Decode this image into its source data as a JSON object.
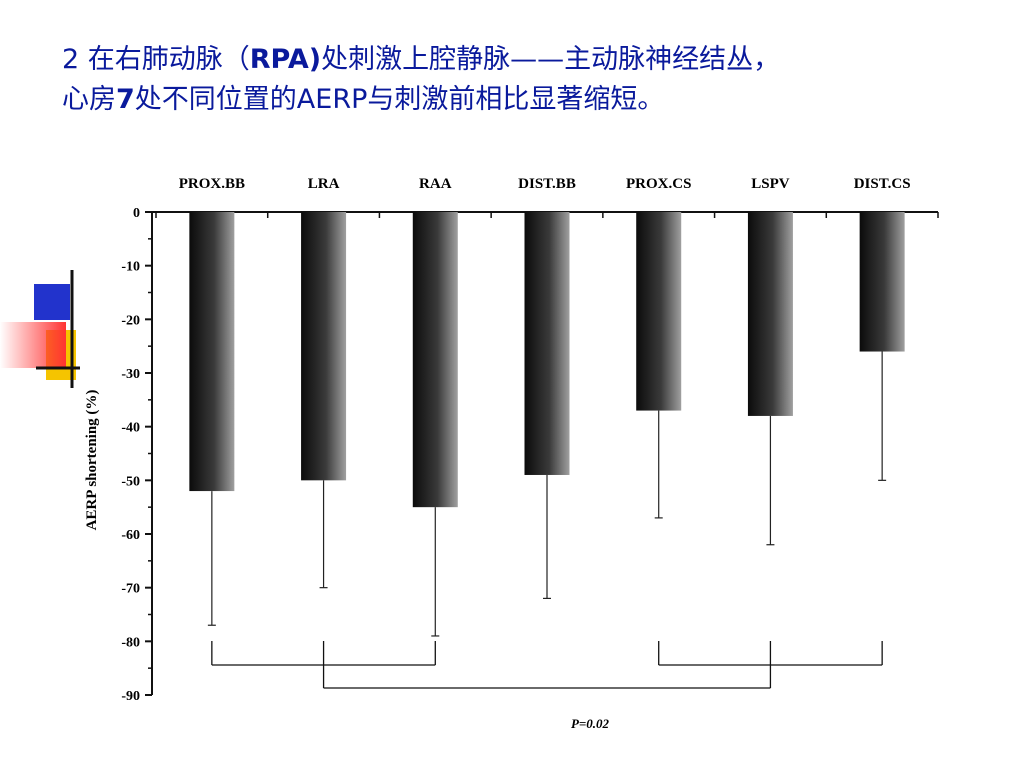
{
  "slide": {
    "title_line1_pre": "2  在右肺动脉（",
    "title_line1_bold": "RPA)",
    "title_line1_post": "处刺激上腔静脉——主动脉神经结丛，",
    "title_line2_pre": "心房",
    "title_line2_bold": "7",
    "title_line2_post": "处不同位置的AERP与刺激前相比显著缩短。"
  },
  "colors": {
    "title": "#0a1a9c",
    "bar_dark": "#111111",
    "bar_light": "#9a9a9a",
    "deco_blue": "#2233cc",
    "deco_yellow": "#f5c400",
    "deco_red": "#ff3333"
  },
  "chart_data": {
    "type": "bar",
    "categories": [
      "PROX.BB",
      "LRA",
      "RAA",
      "DIST.BB",
      "PROX.CS",
      "LSPV",
      "DIST.CS"
    ],
    "values": [
      -52,
      -50,
      -55,
      -49,
      -37,
      -38,
      -26
    ],
    "error_low": [
      -77,
      -70,
      -79,
      -72,
      -57,
      -62,
      -50
    ],
    "ylabel": "AERP shortening (%)",
    "ylim": [
      -90,
      0
    ],
    "yticks": [
      0,
      -10,
      -20,
      -30,
      -40,
      -50,
      -60,
      -70,
      -80,
      -90
    ],
    "category_axis_position": "top",
    "grid": false,
    "annotation": "P=0.02",
    "brackets": [
      {
        "from": 0,
        "to": 2
      },
      {
        "from": 4,
        "to": 6
      },
      {
        "from": 1,
        "to": 5
      }
    ]
  }
}
